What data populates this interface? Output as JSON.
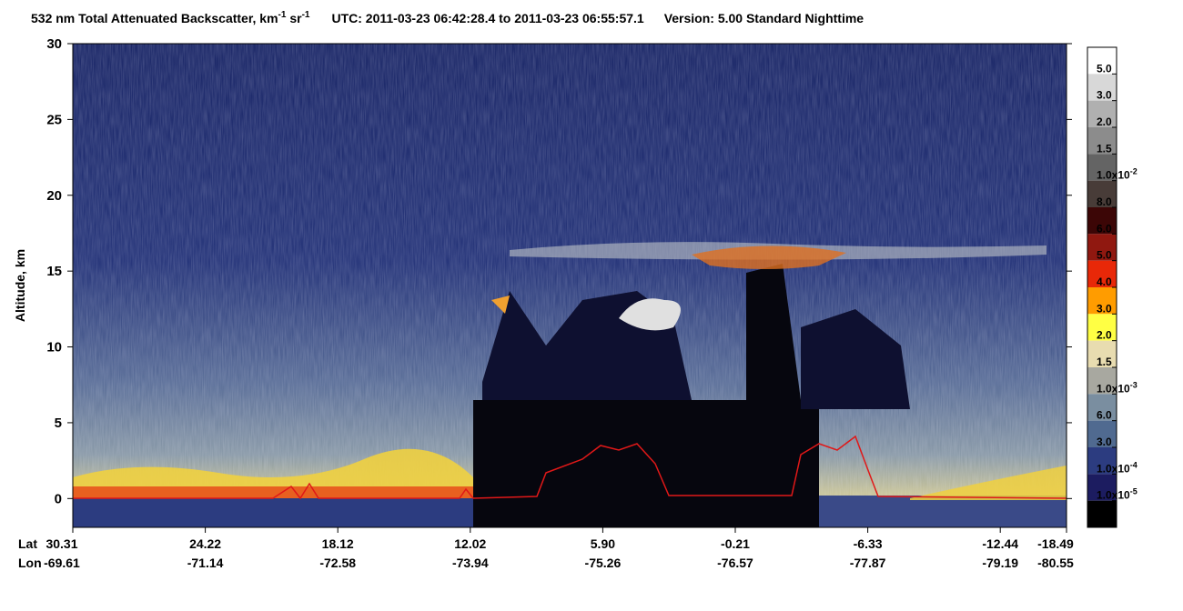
{
  "chart_data": {
    "type": "curtain",
    "title": {
      "main": "532 nm Total Attenuated Backscatter, km",
      "sup1": "-1",
      "mid": " sr",
      "sup2": "-1",
      "utc": "UTC:  2011-03-23 06:42:28.4  to  2011-03-23 06:55:57.1",
      "version": "Version: 5.00  Standard  Nighttime"
    },
    "y_label": "Altitude, km",
    "ylim": [
      -1.9,
      30
    ],
    "yticks": [
      0,
      5,
      10,
      15,
      20,
      25,
      30
    ],
    "x_row_labels": [
      "Lat",
      "Lon"
    ],
    "lat": [
      "30.31",
      "24.22",
      "18.12",
      "12.02",
      "5.90",
      "-0.21",
      "-6.33",
      "-12.44",
      "-18.49"
    ],
    "lon": [
      "-69.61",
      "-71.14",
      "-72.58",
      "-73.94",
      "-75.26",
      "-76.57",
      "-77.87",
      "-79.19",
      "-80.55"
    ],
    "colorbar": {
      "colors": [
        "#ffffff",
        "#d8d8d8",
        "#b0b0b0",
        "#8c8c8c",
        "#646464",
        "#483c38",
        "#3c0606",
        "#901810",
        "#e82808",
        "#ff9c00",
        "#ffff44",
        "#e8dcb0",
        "#a8a8a0",
        "#7a8ea0",
        "#506a90",
        "#2c3c80",
        "#1c1c60",
        "#000000"
      ],
      "labels": [
        {
          "text": "5.0"
        },
        {
          "text": "3.0"
        },
        {
          "text": "2.0"
        },
        {
          "text": "1.5"
        },
        {
          "text": "1.0x10",
          "sup": "-2"
        },
        {
          "text": "8.0"
        },
        {
          "text": "6.0"
        },
        {
          "text": "5.0"
        },
        {
          "text": "4.0"
        },
        {
          "text": "3.0"
        },
        {
          "text": "2.0"
        },
        {
          "text": "1.5"
        },
        {
          "text": "1.0x10",
          "sup": "-3"
        },
        {
          "text": "6.0"
        },
        {
          "text": "3.0"
        },
        {
          "text": "1.0x10",
          "sup": "-4"
        },
        {
          "text": "1.0x10",
          "sup": "-5"
        }
      ]
    }
  }
}
